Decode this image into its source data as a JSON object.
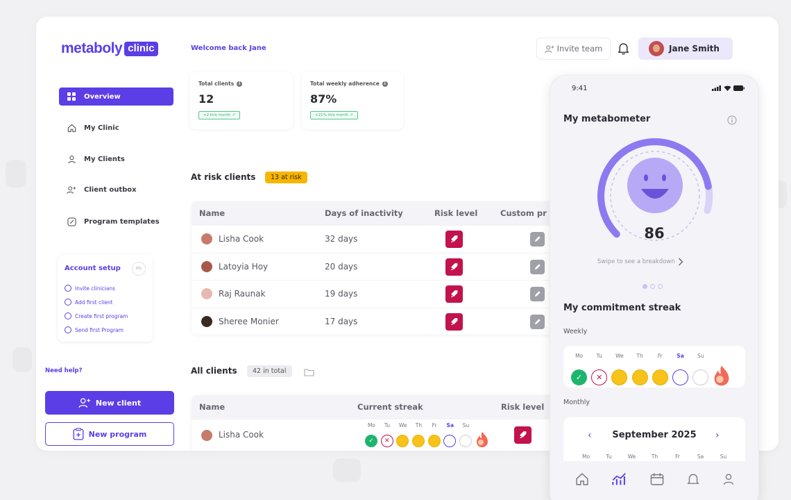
{
  "brand": {
    "name": "metaboly",
    "badge": "clinic"
  },
  "sidebar": {
    "items": [
      {
        "label": "Overview",
        "icon": "grid-icon"
      },
      {
        "label": "My Clinic",
        "icon": "home-icon"
      },
      {
        "label": "My Clients",
        "icon": "user-icon"
      },
      {
        "label": "Client outbox",
        "icon": "user-plus-icon"
      },
      {
        "label": "Program templates",
        "icon": "edit-icon"
      }
    ],
    "setup": {
      "title": "Account setup",
      "percent": "0%",
      "steps": [
        "Invite clinicians",
        "Add first client",
        "Create first program",
        "Send first Program"
      ]
    },
    "help": "Need help?",
    "new_client": "New client",
    "new_program": "New program"
  },
  "header": {
    "welcome": "Welcome back Jane",
    "invite": "Invite team",
    "user_name": "Jane Smith"
  },
  "stats": [
    {
      "label": "Total clients",
      "value": "12",
      "badge": "+2 this month ↗"
    },
    {
      "label": "Total weekly adherence",
      "value": "87%",
      "badge": "+21% this month ↗"
    }
  ],
  "at_risk": {
    "title": "At risk clients",
    "pill": "13 at risk",
    "columns": [
      "Name",
      "Days of inactivity",
      "Risk level",
      "Custom pr"
    ],
    "rows": [
      {
        "name": "Lisha Cook",
        "days": "32 days"
      },
      {
        "name": "Latoyia Hoy",
        "days": "20 days"
      },
      {
        "name": "Raj Raunak",
        "days": "19 days"
      },
      {
        "name": "Sheree Monier",
        "days": "17 days"
      }
    ]
  },
  "all_clients": {
    "title": "All clients",
    "pill": "42 in total",
    "columns": [
      "Name",
      "Current streak",
      "Risk level"
    ],
    "rows": [
      {
        "name": "Lisha Cook"
      }
    ]
  },
  "week_days": [
    "Mo",
    "Tu",
    "We",
    "Th",
    "Fr",
    "Sa",
    "Su"
  ],
  "phone": {
    "time": "9:41",
    "title": "My metabometer",
    "score": "86",
    "score_fraction": 0.86,
    "swipe": "Swipe to see a breakdown",
    "streak_title": "My commitment streak",
    "weekly": "Weekly",
    "monthly": "Monthly",
    "month": "September 2025"
  },
  "colors": {
    "primary": "#5b3ee6",
    "risk": "#c2134d",
    "warning": "#f7b500",
    "success": "#1db56d",
    "streak": "#f7c31a"
  }
}
